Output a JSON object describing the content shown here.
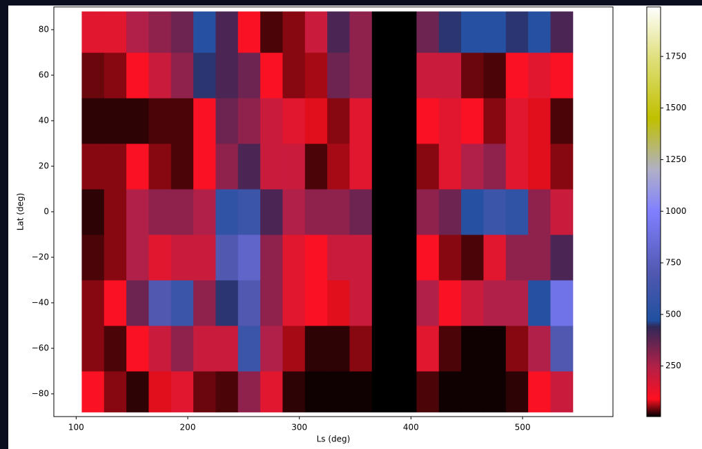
{
  "chart_data": {
    "type": "heatmap",
    "x_label": "Ls (deg)",
    "y_label": "Lat (deg)",
    "xlim": [
      80,
      581
    ],
    "ylim": [
      -90,
      90
    ],
    "xticks": [
      100,
      200,
      300,
      400,
      500
    ],
    "yticks": [
      {
        "value": -80,
        "label": "−80"
      },
      {
        "value": -60,
        "label": "−60"
      },
      {
        "value": -40,
        "label": "−40"
      },
      {
        "value": -20,
        "label": "−20"
      },
      0,
      20,
      40,
      60,
      80
    ],
    "x_edges": [
      105,
      125,
      145,
      165,
      185,
      205,
      225,
      245,
      265,
      285,
      305,
      325,
      345,
      365,
      385,
      405,
      425,
      445,
      465,
      485,
      505,
      525,
      545
    ],
    "y_edges": [
      -88,
      -70,
      -50,
      -30,
      -10,
      10,
      30,
      50,
      70,
      88
    ],
    "z": [
      [
        100,
        50,
        20,
        80,
        150,
        40,
        30,
        300,
        150,
        20,
        10,
        10,
        10,
        0,
        0,
        30,
        10,
        10,
        10,
        20,
        100,
        200
      ],
      [
        50,
        30,
        100,
        200,
        300,
        200,
        200,
        600,
        250,
        60,
        20,
        20,
        50,
        0,
        0,
        150,
        30,
        10,
        10,
        50,
        250,
        700
      ],
      [
        50,
        100,
        350,
        700,
        600,
        300,
        450,
        700,
        300,
        150,
        100,
        80,
        200,
        0,
        0,
        250,
        100,
        200,
        250,
        250,
        500,
        900
      ],
      [
        30,
        50,
        250,
        150,
        200,
        200,
        700,
        800,
        300,
        150,
        100,
        200,
        200,
        0,
        0,
        100,
        50,
        30,
        150,
        300,
        300,
        400
      ],
      [
        20,
        50,
        250,
        300,
        300,
        250,
        550,
        600,
        400,
        250,
        300,
        300,
        350,
        0,
        0,
        300,
        350,
        500,
        600,
        550,
        300,
        200
      ],
      [
        50,
        50,
        100,
        50,
        30,
        100,
        300,
        400,
        200,
        200,
        30,
        60,
        150,
        0,
        0,
        50,
        150,
        250,
        300,
        150,
        80,
        50
      ],
      [
        20,
        20,
        20,
        30,
        30,
        100,
        350,
        300,
        200,
        150,
        80,
        50,
        150,
        0,
        0,
        100,
        150,
        100,
        50,
        150,
        80,
        30
      ],
      [
        40,
        50,
        100,
        200,
        300,
        450,
        400,
        350,
        100,
        50,
        60,
        350,
        300,
        0,
        0,
        200,
        200,
        40,
        30,
        100,
        150,
        100
      ],
      [
        150,
        150,
        250,
        300,
        350,
        500,
        400,
        100,
        30,
        50,
        200,
        400,
        300,
        0,
        0,
        350,
        450,
        500,
        500,
        450,
        500,
        400
      ]
    ],
    "clim": [
      5,
      1990
    ],
    "cticks": [
      250,
      500,
      750,
      1000,
      1250,
      1500,
      1750
    ],
    "colormap": [
      {
        "value": 5,
        "color": "#000000"
      },
      {
        "value": 90,
        "color": "#ff1020"
      },
      {
        "value": 250,
        "color": "#b02048"
      },
      {
        "value": 440,
        "color": "#302858"
      },
      {
        "value": 470,
        "color": "#2050a0"
      },
      {
        "value": 700,
        "color": "#5058b0"
      },
      {
        "value": 1000,
        "color": "#8080ff"
      },
      {
        "value": 1200,
        "color": "#b0b0c8"
      },
      {
        "value": 1450,
        "color": "#c0c000"
      },
      {
        "value": 1750,
        "color": "#e0e080"
      },
      {
        "value": 1990,
        "color": "#ffffff"
      }
    ]
  }
}
